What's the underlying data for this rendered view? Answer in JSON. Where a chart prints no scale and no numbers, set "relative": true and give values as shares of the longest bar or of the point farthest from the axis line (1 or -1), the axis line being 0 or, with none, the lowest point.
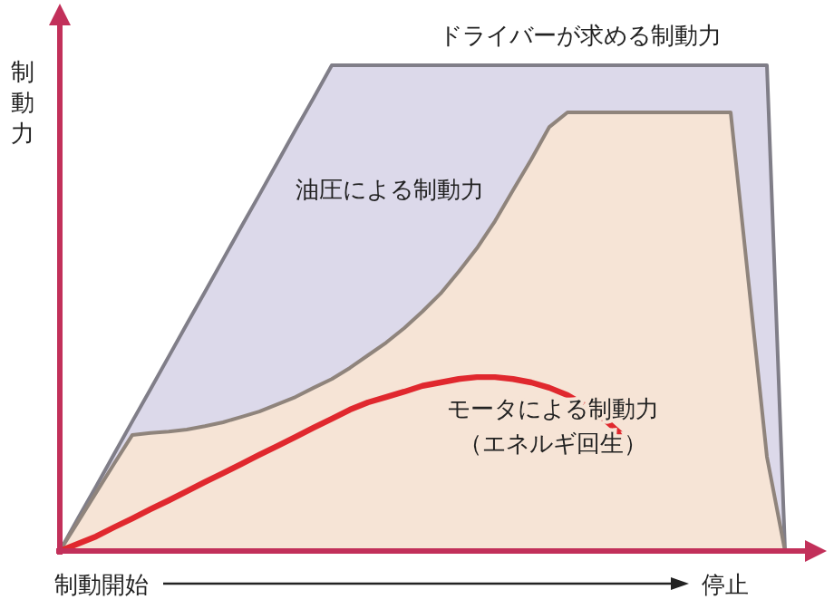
{
  "chart_data": {
    "type": "area",
    "relative": true,
    "ylabel": "制動力",
    "annotations": [
      "制動開始",
      "停止"
    ],
    "categories": [
      null,
      null,
      null,
      null,
      null,
      null,
      null,
      null,
      null,
      null,
      null,
      null,
      null,
      null,
      null,
      null,
      null,
      null,
      null,
      null,
      null,
      null,
      null,
      null,
      null,
      null,
      null,
      null,
      null,
      null,
      null,
      null,
      null,
      null,
      null,
      null,
      null,
      null,
      null,
      null,
      null
    ],
    "series": [
      {
        "name": "ドライバーが求める制動力",
        "type": "area",
        "color": "#dcd9ea",
        "values": [
          0,
          0.067,
          0.133,
          0.2,
          0.267,
          0.333,
          0.4,
          0.467,
          0.533,
          0.6,
          0.667,
          0.733,
          0.8,
          0.867,
          0.933,
          1,
          1,
          1,
          1,
          1,
          1,
          1,
          1,
          1,
          1,
          1,
          1,
          1,
          1,
          1,
          1,
          1,
          1,
          1,
          1,
          1,
          1,
          1,
          1,
          1,
          0
        ]
      },
      {
        "name": "油圧による制動力",
        "type": "area",
        "color": "#f6e4d6",
        "values": [
          0,
          0.06,
          0.12,
          0.18,
          0.239,
          0.243,
          0.246,
          0.25,
          0.257,
          0.265,
          0.276,
          0.287,
          0.302,
          0.317,
          0.336,
          0.354,
          0.377,
          0.403,
          0.429,
          0.459,
          0.493,
          0.53,
          0.575,
          0.623,
          0.679,
          0.743,
          0.806,
          0.873,
          0.903,
          0.903,
          0.903,
          0.903,
          0.903,
          0.903,
          0.903,
          0.903,
          0.903,
          0.903,
          0.549,
          0.194,
          0
        ]
      },
      {
        "name": "モータによる制動力（エネルギ回生）",
        "type": "line",
        "color": "#e0282e",
        "values": [
          0,
          0.015,
          0.03,
          0.049,
          0.067,
          0.086,
          0.104,
          0.123,
          0.142,
          0.16,
          0.179,
          0.198,
          0.216,
          0.235,
          0.254,
          0.272,
          0.291,
          0.306,
          0.317,
          0.328,
          0.34,
          0.347,
          0.354,
          0.358,
          0.358,
          0.354,
          0.347,
          0.336,
          0.321,
          0.299,
          0.272,
          0.239,
          null,
          null,
          null,
          null,
          null,
          null,
          null,
          null,
          null
        ]
      }
    ]
  }
}
